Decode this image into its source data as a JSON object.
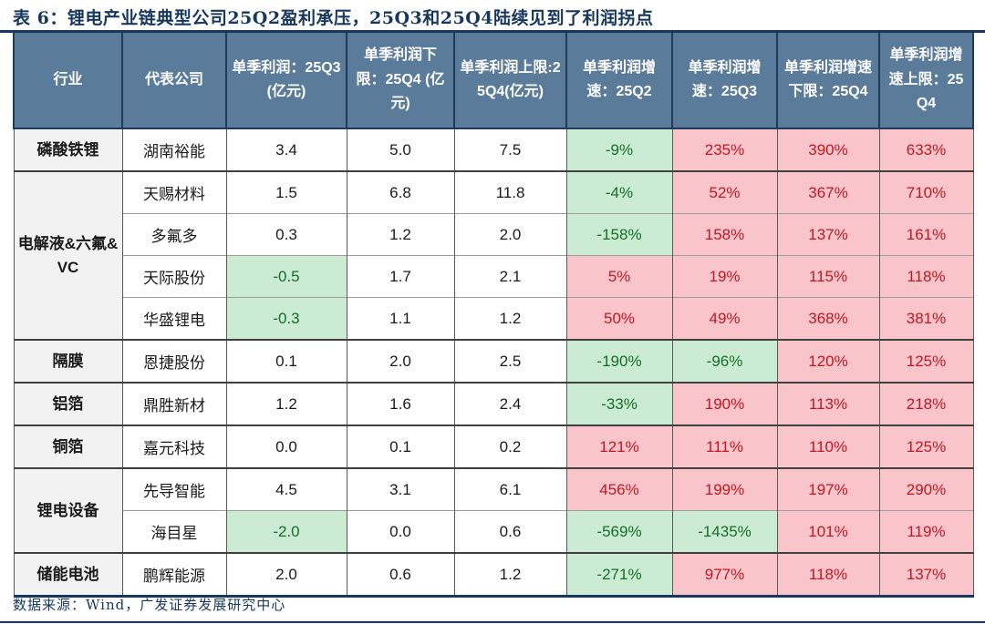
{
  "page": {
    "title": "表 6：锂电产业链典型公司25Q2盈利承压，25Q3和25Q4陆续见到了利润拐点",
    "source_note": "数据来源：Wind，广发证券发展研究中心"
  },
  "colors": {
    "title_navy": "#17375e",
    "header_bg": "#5b7b9b",
    "header_text": "#ffffff",
    "industry_cell_bg": "#f2f2f2",
    "positive_highlight_bg": "#f9c5cb",
    "positive_highlight_text": "#bf1722",
    "negative_highlight_bg": "#cbecd2",
    "negative_highlight_text": "#146e28"
  },
  "table": {
    "columns": [
      {
        "label": "行业"
      },
      {
        "label": "代表公司"
      },
      {
        "label": "单季利润：25Q3 (亿元)"
      },
      {
        "label": "单季利润下限：25Q4 (亿元)"
      },
      {
        "label": "单季利润上限:25Q4(亿元)"
      },
      {
        "label": "单季利润增速：25Q2"
      },
      {
        "label": "单季利润增速：25Q3"
      },
      {
        "label": "单季利润增速下限：25Q4"
      },
      {
        "label": "单季利润增速上限：25Q4"
      }
    ],
    "rows": [
      {
        "industry": "磷酸铁锂",
        "rowspan": 1,
        "company": "湖南裕能",
        "cells": [
          {
            "v": "3.4",
            "s": "plain"
          },
          {
            "v": "5.0",
            "s": "plain"
          },
          {
            "v": "7.5",
            "s": "plain"
          },
          {
            "v": "-9%",
            "s": "green"
          },
          {
            "v": "235%",
            "s": "pink"
          },
          {
            "v": "390%",
            "s": "pink"
          },
          {
            "v": "633%",
            "s": "pink"
          }
        ]
      },
      {
        "industry": "电解液&六氟&VC",
        "rowspan": 4,
        "company": "天赐材料",
        "cells": [
          {
            "v": "1.5",
            "s": "plain"
          },
          {
            "v": "6.8",
            "s": "plain"
          },
          {
            "v": "11.8",
            "s": "plain"
          },
          {
            "v": "-4%",
            "s": "green"
          },
          {
            "v": "52%",
            "s": "pink"
          },
          {
            "v": "367%",
            "s": "pink"
          },
          {
            "v": "710%",
            "s": "pink"
          }
        ]
      },
      {
        "industry": null,
        "company": "多氟多",
        "cells": [
          {
            "v": "0.3",
            "s": "plain"
          },
          {
            "v": "1.2",
            "s": "plain"
          },
          {
            "v": "2.0",
            "s": "plain"
          },
          {
            "v": "-158%",
            "s": "green"
          },
          {
            "v": "158%",
            "s": "pink"
          },
          {
            "v": "137%",
            "s": "pink"
          },
          {
            "v": "161%",
            "s": "pink"
          }
        ]
      },
      {
        "industry": null,
        "company": "天际股份",
        "cells": [
          {
            "v": "-0.5",
            "s": "green"
          },
          {
            "v": "1.7",
            "s": "plain"
          },
          {
            "v": "2.1",
            "s": "plain"
          },
          {
            "v": "5%",
            "s": "pink"
          },
          {
            "v": "19%",
            "s": "pink"
          },
          {
            "v": "115%",
            "s": "pink"
          },
          {
            "v": "118%",
            "s": "pink"
          }
        ]
      },
      {
        "industry": null,
        "company": "华盛锂电",
        "cells": [
          {
            "v": "-0.3",
            "s": "green"
          },
          {
            "v": "1.1",
            "s": "plain"
          },
          {
            "v": "1.2",
            "s": "plain"
          },
          {
            "v": "50%",
            "s": "pink"
          },
          {
            "v": "49%",
            "s": "pink"
          },
          {
            "v": "368%",
            "s": "pink"
          },
          {
            "v": "381%",
            "s": "pink"
          }
        ]
      },
      {
        "industry": "隔膜",
        "rowspan": 1,
        "company": "恩捷股份",
        "cells": [
          {
            "v": "0.1",
            "s": "plain"
          },
          {
            "v": "2.0",
            "s": "plain"
          },
          {
            "v": "2.5",
            "s": "plain"
          },
          {
            "v": "-190%",
            "s": "green"
          },
          {
            "v": "-96%",
            "s": "green"
          },
          {
            "v": "120%",
            "s": "pink"
          },
          {
            "v": "125%",
            "s": "pink"
          }
        ]
      },
      {
        "industry": "铝箔",
        "rowspan": 1,
        "company": "鼎胜新材",
        "cells": [
          {
            "v": "1.2",
            "s": "plain"
          },
          {
            "v": "1.6",
            "s": "plain"
          },
          {
            "v": "2.4",
            "s": "plain"
          },
          {
            "v": "-33%",
            "s": "green"
          },
          {
            "v": "190%",
            "s": "pink"
          },
          {
            "v": "113%",
            "s": "pink"
          },
          {
            "v": "218%",
            "s": "pink"
          }
        ]
      },
      {
        "industry": "铜箔",
        "rowspan": 1,
        "company": "嘉元科技",
        "cells": [
          {
            "v": "0.0",
            "s": "plain"
          },
          {
            "v": "0.1",
            "s": "plain"
          },
          {
            "v": "0.2",
            "s": "plain"
          },
          {
            "v": "121%",
            "s": "pink"
          },
          {
            "v": "111%",
            "s": "pink"
          },
          {
            "v": "110%",
            "s": "pink"
          },
          {
            "v": "125%",
            "s": "pink"
          }
        ]
      },
      {
        "industry": "锂电设备",
        "rowspan": 2,
        "company": "先导智能",
        "cells": [
          {
            "v": "4.5",
            "s": "plain"
          },
          {
            "v": "3.1",
            "s": "plain"
          },
          {
            "v": "6.1",
            "s": "plain"
          },
          {
            "v": "456%",
            "s": "pink"
          },
          {
            "v": "199%",
            "s": "pink"
          },
          {
            "v": "197%",
            "s": "pink"
          },
          {
            "v": "290%",
            "s": "pink"
          }
        ]
      },
      {
        "industry": null,
        "company": "海目星",
        "cells": [
          {
            "v": "-2.0",
            "s": "green"
          },
          {
            "v": "0.0",
            "s": "plain"
          },
          {
            "v": "0.6",
            "s": "plain"
          },
          {
            "v": "-569%",
            "s": "green"
          },
          {
            "v": "-1435%",
            "s": "green"
          },
          {
            "v": "101%",
            "s": "pink"
          },
          {
            "v": "119%",
            "s": "pink"
          }
        ]
      },
      {
        "industry": "储能电池",
        "rowspan": 1,
        "company": "鹏辉能源",
        "cells": [
          {
            "v": "2.0",
            "s": "plain"
          },
          {
            "v": "0.6",
            "s": "plain"
          },
          {
            "v": "1.2",
            "s": "plain"
          },
          {
            "v": "-271%",
            "s": "green"
          },
          {
            "v": "977%",
            "s": "pink"
          },
          {
            "v": "118%",
            "s": "pink"
          },
          {
            "v": "137%",
            "s": "pink"
          }
        ]
      }
    ]
  }
}
